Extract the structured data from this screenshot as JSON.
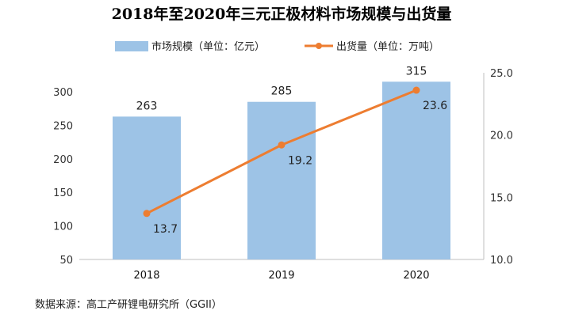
{
  "chart_data": {
    "type": "bar+line",
    "title": "2018年至2020年三元正极材料市场规模与出货量",
    "categories": [
      "2018",
      "2019",
      "2020"
    ],
    "series": [
      {
        "name": "市场规模（单位：亿元）",
        "kind": "bar",
        "axis": "left",
        "values": [
          263,
          285,
          315
        ],
        "labels": [
          "263",
          "285",
          "315"
        ],
        "color": "#9dc3e6"
      },
      {
        "name": "出货量（单位：万吨）",
        "kind": "line",
        "axis": "right",
        "values": [
          13.7,
          19.2,
          23.6
        ],
        "labels": [
          "13.7",
          "19.2",
          "23.6"
        ],
        "color": "#ed7d31"
      }
    ],
    "y_left": {
      "min": 50,
      "max": 300,
      "ticks": [
        50,
        100,
        150,
        200,
        250,
        300
      ],
      "tick_labels": [
        "50",
        "100",
        "150",
        "200",
        "250",
        "300"
      ]
    },
    "y_right": {
      "min": 10.0,
      "max": 25.0,
      "ticks": [
        10.0,
        15.0,
        20.0,
        25.0
      ],
      "tick_labels": [
        "10.0",
        "15.0",
        "20.0",
        "25.0"
      ]
    },
    "grid": false,
    "legend": "top-center",
    "source": "数据来源：高工产研锂电研究所（GGII）"
  }
}
